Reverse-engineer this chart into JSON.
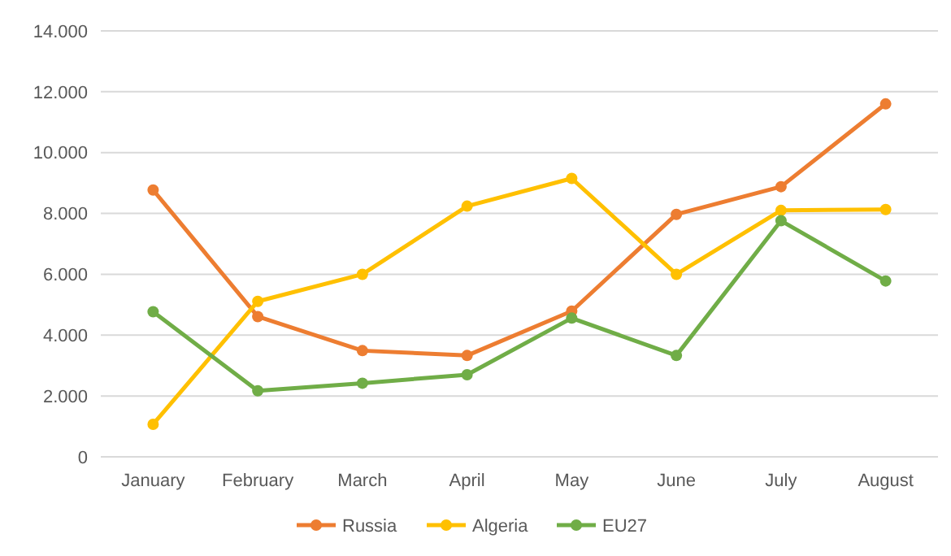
{
  "chart_data": {
    "type": "line",
    "categories": [
      "January",
      "February",
      "March",
      "April",
      "May",
      "June",
      "July",
      "August"
    ],
    "series": [
      {
        "name": "Russia",
        "color": "#ed7d31",
        "values": [
          8770,
          4610,
          3490,
          3330,
          4790,
          7970,
          8880,
          11600
        ]
      },
      {
        "name": "Algeria",
        "color": "#ffc000",
        "values": [
          1070,
          5110,
          6000,
          8240,
          9150,
          6000,
          8100,
          8130
        ]
      },
      {
        "name": "EU27",
        "color": "#70ad47",
        "values": [
          4770,
          2170,
          2420,
          2700,
          4560,
          3330,
          7760,
          5780
        ]
      }
    ],
    "ylim": [
      0,
      14000
    ],
    "yticks": [
      {
        "value": 0,
        "label": "0"
      },
      {
        "value": 2000,
        "label": "2.000"
      },
      {
        "value": 4000,
        "label": "4.000"
      },
      {
        "value": 6000,
        "label": "6.000"
      },
      {
        "value": 8000,
        "label": "8.000"
      },
      {
        "value": 10000,
        "label": "10.000"
      },
      {
        "value": 12000,
        "label": "12.000"
      },
      {
        "value": 14000,
        "label": "14.000"
      }
    ],
    "grid": "y",
    "legend": "bottom",
    "marker": "circle",
    "line_style": "solid"
  }
}
